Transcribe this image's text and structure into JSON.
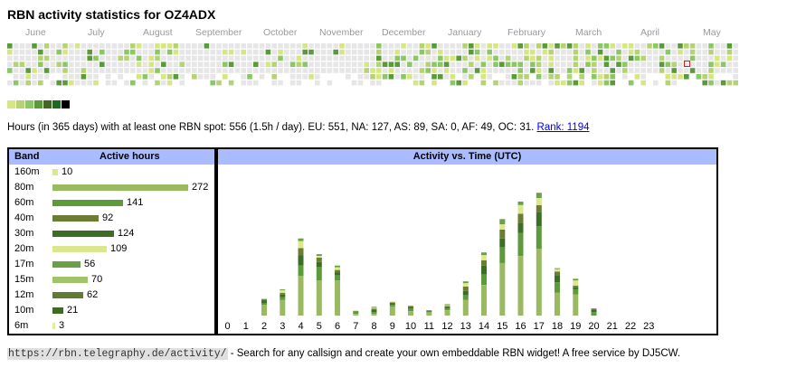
{
  "page": {
    "title": "RBN activity statistics for OZ4ADX"
  },
  "heatmap": {
    "months": [
      "June",
      "July",
      "August",
      "September",
      "October",
      "November",
      "December",
      "January",
      "February",
      "March",
      "April",
      "May"
    ],
    "level_colors": [
      "#e6e6e6",
      "#d6e685",
      "#b5d275",
      "#8cc665",
      "#5a9a3a",
      "#44a340",
      "#336622",
      "#000000"
    ],
    "today_marker_color": "#cc2222"
  },
  "legend": {
    "colors": [
      "#d6e685",
      "#b5d275",
      "#8cc665",
      "#5a9a3a",
      "#446622",
      "#1e6823",
      "#000000"
    ]
  },
  "summary": {
    "text": "Hours (in 365 days) with at least one RBN spot: 556 (1.5h / day). EU: 551, NA: 127, AS: 89, SA: 0, AF: 49, OC: 31.",
    "rank_link": "Rank: 1194"
  },
  "band_table": {
    "header_band": "Band",
    "header_hours": "Active hours",
    "rows": [
      {
        "band": "160m",
        "hours": 10,
        "color": "#dde88a"
      },
      {
        "band": "80m",
        "hours": 272,
        "color": "#9aba62"
      },
      {
        "band": "60m",
        "hours": 141,
        "color": "#5c9a3c"
      },
      {
        "band": "40m",
        "hours": 92,
        "color": "#6b7d33"
      },
      {
        "band": "30m",
        "hours": 124,
        "color": "#3d6e25"
      },
      {
        "band": "20m",
        "hours": 109,
        "color": "#dbe68e"
      },
      {
        "band": "17m",
        "hours": 56,
        "color": "#6aa048"
      },
      {
        "band": "15m",
        "hours": 70,
        "color": "#9fc46a"
      },
      {
        "band": "12m",
        "hours": 62,
        "color": "#617a34"
      },
      {
        "band": "10m",
        "hours": 21,
        "color": "#3d6b24"
      },
      {
        "band": "6m",
        "hours": 3,
        "color": "#e4ec96"
      }
    ]
  },
  "chart_data": {
    "type": "bar",
    "title": "Activity vs. Time (UTC)",
    "categories": [
      "0",
      "1",
      "2",
      "3",
      "4",
      "5",
      "6",
      "7",
      "8",
      "9",
      "10",
      "11",
      "12",
      "13",
      "14",
      "15",
      "16",
      "17",
      "18",
      "19",
      "20",
      "21",
      "22",
      "23"
    ],
    "series": [
      {
        "values": [
          0,
          0,
          12,
          18,
          45,
          40,
          40,
          2,
          2,
          10,
          5,
          4,
          6,
          18,
          35,
          60,
          68,
          76,
          26,
          24,
          0,
          0,
          0,
          0
        ],
        "color": "#9aba62"
      },
      {
        "values": [
          0,
          0,
          2,
          3,
          12,
          15,
          6,
          2,
          2,
          2,
          3,
          0,
          2,
          5,
          12,
          18,
          26,
          26,
          12,
          6,
          4,
          0,
          0,
          0
        ],
        "color": "#5c9a3c"
      },
      {
        "values": [
          0,
          0,
          3,
          3,
          12,
          6,
          3,
          1,
          3,
          2,
          2,
          1,
          2,
          5,
          10,
          10,
          12,
          16,
          8,
          2,
          3,
          0,
          0,
          0
        ],
        "color": "#3d6e25"
      },
      {
        "values": [
          0,
          0,
          1,
          2,
          8,
          5,
          3,
          0,
          1,
          1,
          1,
          1,
          1,
          5,
          6,
          10,
          10,
          8,
          4,
          2,
          1,
          0,
          0,
          0
        ],
        "color": "#6b7d33"
      },
      {
        "values": [
          0,
          0,
          0,
          3,
          8,
          2,
          3,
          1,
          1,
          1,
          0,
          0,
          1,
          4,
          6,
          6,
          10,
          8,
          3,
          6,
          0,
          0,
          0,
          0
        ],
        "color": "#dde88a"
      },
      {
        "values": [
          0,
          0,
          1,
          1,
          3,
          2,
          2,
          0,
          1,
          0,
          0,
          0,
          1,
          2,
          3,
          6,
          4,
          6,
          1,
          2,
          0,
          0,
          0,
          0
        ],
        "color": "#6aa048"
      }
    ],
    "ylim": [
      0,
      165
    ]
  },
  "footer": {
    "url": "https://rbn.telegraphy.de/activity/",
    "text": " - Search for any callsign and create your own embeddable RBN widget! A free service by DJ5CW."
  }
}
